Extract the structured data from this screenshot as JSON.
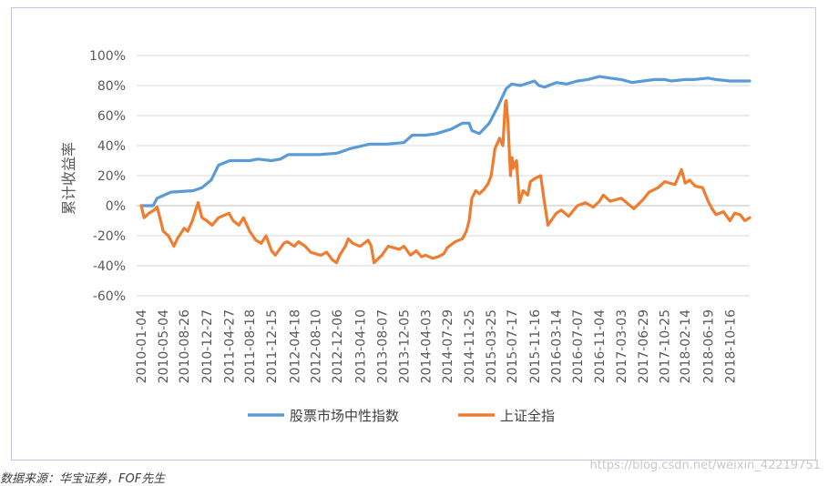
{
  "chart_data": {
    "type": "line",
    "ylabel": "累计收益率",
    "xlabel": "",
    "ylim": [
      -60,
      100
    ],
    "yticks": [
      "100%",
      "80%",
      "60%",
      "40%",
      "20%",
      "0%",
      "-20%",
      "-40%",
      "-60%"
    ],
    "ytick_values": [
      100,
      80,
      60,
      40,
      20,
      0,
      -20,
      -40,
      -60
    ],
    "grid": "horizontal",
    "legend_position": "bottom",
    "x_tick_labels": [
      "2010-01-04",
      "2010-05-04",
      "2010-08-26",
      "2010-12-27",
      "2011-04-27",
      "2011-08-18",
      "2011-12-15",
      "2012-04-18",
      "2012-08-10",
      "2012-12-06",
      "2013-04-10",
      "2013-08-07",
      "2013-12-05",
      "2014-04-03",
      "2014-07-29",
      "2014-11-25",
      "2015-03-25",
      "2015-07-17",
      "2015-11-16",
      "2016-03-14",
      "2016-07-07",
      "2016-11-04",
      "2017-03-03",
      "2017-06-29",
      "2017-10-25",
      "2018-02-14",
      "2018-06-19",
      "2018-10-16"
    ],
    "x_range": [
      "2010-01-04",
      "2019-01-31"
    ],
    "series": [
      {
        "name": "股票市场中性指数",
        "color": "#5b9bd5",
        "points": [
          [
            "2010-01-04",
            0
          ],
          [
            "2010-03-10",
            0
          ],
          [
            "2010-04-01",
            5
          ],
          [
            "2010-06-15",
            9
          ],
          [
            "2010-10-15",
            10
          ],
          [
            "2010-12-01",
            12
          ],
          [
            "2011-01-20",
            17
          ],
          [
            "2011-03-01",
            27
          ],
          [
            "2011-05-01",
            30
          ],
          [
            "2011-08-18",
            30
          ],
          [
            "2011-10-01",
            31
          ],
          [
            "2011-12-15",
            30
          ],
          [
            "2012-02-01",
            31
          ],
          [
            "2012-03-15",
            34
          ],
          [
            "2012-06-01",
            34
          ],
          [
            "2012-09-01",
            34
          ],
          [
            "2012-12-06",
            35
          ],
          [
            "2013-02-15",
            38
          ],
          [
            "2013-06-01",
            41
          ],
          [
            "2013-09-01",
            41
          ],
          [
            "2013-12-05",
            42
          ],
          [
            "2014-01-20",
            47
          ],
          [
            "2014-04-03",
            47
          ],
          [
            "2014-06-01",
            48
          ],
          [
            "2014-08-20",
            51
          ],
          [
            "2014-10-20",
            55
          ],
          [
            "2014-11-25",
            55
          ],
          [
            "2014-12-10",
            50
          ],
          [
            "2015-01-20",
            48
          ],
          [
            "2015-03-15",
            55
          ],
          [
            "2015-05-01",
            66
          ],
          [
            "2015-06-15",
            78
          ],
          [
            "2015-07-15",
            81
          ],
          [
            "2015-09-01",
            80
          ],
          [
            "2015-11-16",
            83
          ],
          [
            "2015-12-10",
            80
          ],
          [
            "2016-01-10",
            79
          ],
          [
            "2016-03-14",
            82
          ],
          [
            "2016-05-10",
            81
          ],
          [
            "2016-07-07",
            83
          ],
          [
            "2016-09-01",
            84
          ],
          [
            "2016-11-04",
            86
          ],
          [
            "2017-01-01",
            85
          ],
          [
            "2017-03-03",
            84
          ],
          [
            "2017-05-01",
            82
          ],
          [
            "2017-06-29",
            83
          ],
          [
            "2017-09-01",
            84
          ],
          [
            "2017-10-25",
            84
          ],
          [
            "2017-12-01",
            83
          ],
          [
            "2018-02-14",
            84
          ],
          [
            "2018-04-01",
            84
          ],
          [
            "2018-06-19",
            85
          ],
          [
            "2018-08-01",
            84
          ],
          [
            "2018-10-16",
            83
          ],
          [
            "2019-01-31",
            83
          ]
        ]
      },
      {
        "name": "上证全指",
        "color": "#ed7d31",
        "points": [
          [
            "2010-01-04",
            0
          ],
          [
            "2010-01-20",
            -8
          ],
          [
            "2010-02-15",
            -5
          ],
          [
            "2010-03-15",
            -3
          ],
          [
            "2010-04-01",
            -1
          ],
          [
            "2010-04-20",
            -10
          ],
          [
            "2010-05-04",
            -17
          ],
          [
            "2010-06-01",
            -20
          ],
          [
            "2010-07-01",
            -27
          ],
          [
            "2010-07-20",
            -22
          ],
          [
            "2010-08-26",
            -15
          ],
          [
            "2010-09-15",
            -17
          ],
          [
            "2010-10-10",
            -10
          ],
          [
            "2010-11-10",
            2
          ],
          [
            "2010-12-01",
            -8
          ],
          [
            "2010-12-27",
            -10
          ],
          [
            "2011-01-25",
            -13
          ],
          [
            "2011-03-01",
            -8
          ],
          [
            "2011-04-27",
            -5
          ],
          [
            "2011-05-20",
            -10
          ],
          [
            "2011-06-20",
            -13
          ],
          [
            "2011-07-15",
            -8
          ],
          [
            "2011-08-18",
            -17
          ],
          [
            "2011-09-20",
            -23
          ],
          [
            "2011-10-20",
            -25
          ],
          [
            "2011-11-15",
            -20
          ],
          [
            "2011-12-15",
            -30
          ],
          [
            "2012-01-05",
            -33
          ],
          [
            "2012-02-20",
            -25
          ],
          [
            "2012-03-10",
            -24
          ],
          [
            "2012-04-18",
            -27
          ],
          [
            "2012-05-10",
            -24
          ],
          [
            "2012-06-15",
            -27
          ],
          [
            "2012-07-15",
            -31
          ],
          [
            "2012-08-10",
            -32
          ],
          [
            "2012-09-10",
            -33
          ],
          [
            "2012-10-10",
            -31
          ],
          [
            "2012-11-10",
            -36
          ],
          [
            "2012-12-03",
            -38
          ],
          [
            "2012-12-20",
            -33
          ],
          [
            "2013-01-20",
            -27
          ],
          [
            "2013-02-05",
            -22
          ],
          [
            "2013-03-01",
            -25
          ],
          [
            "2013-04-10",
            -27
          ],
          [
            "2013-05-25",
            -23
          ],
          [
            "2013-06-10",
            -27
          ],
          [
            "2013-06-25",
            -38
          ],
          [
            "2013-07-20",
            -35
          ],
          [
            "2013-08-07",
            -33
          ],
          [
            "2013-09-10",
            -27
          ],
          [
            "2013-10-10",
            -28
          ],
          [
            "2013-11-10",
            -29
          ],
          [
            "2013-12-05",
            -27
          ],
          [
            "2014-01-10",
            -33
          ],
          [
            "2014-02-10",
            -30
          ],
          [
            "2014-03-10",
            -34
          ],
          [
            "2014-04-03",
            -33
          ],
          [
            "2014-05-10",
            -35
          ],
          [
            "2014-06-10",
            -34
          ],
          [
            "2014-07-10",
            -32
          ],
          [
            "2014-07-29",
            -28
          ],
          [
            "2014-09-10",
            -24
          ],
          [
            "2014-10-20",
            -22
          ],
          [
            "2014-11-10",
            -17
          ],
          [
            "2014-11-25",
            -10
          ],
          [
            "2014-12-10",
            5
          ],
          [
            "2014-12-31",
            10
          ],
          [
            "2015-01-20",
            8
          ],
          [
            "2015-02-15",
            11
          ],
          [
            "2015-03-10",
            15
          ],
          [
            "2015-03-25",
            20
          ],
          [
            "2015-04-15",
            38
          ],
          [
            "2015-05-10",
            45
          ],
          [
            "2015-05-28",
            40
          ],
          [
            "2015-06-10",
            68
          ],
          [
            "2015-06-15",
            70
          ],
          [
            "2015-06-25",
            55
          ],
          [
            "2015-07-08",
            20
          ],
          [
            "2015-07-17",
            32
          ],
          [
            "2015-07-24",
            25
          ],
          [
            "2015-08-10",
            30
          ],
          [
            "2015-08-26",
            2
          ],
          [
            "2015-09-15",
            10
          ],
          [
            "2015-10-10",
            7
          ],
          [
            "2015-10-25",
            16
          ],
          [
            "2015-11-16",
            18
          ],
          [
            "2015-12-20",
            20
          ],
          [
            "2016-01-05",
            6
          ],
          [
            "2016-01-28",
            -13
          ],
          [
            "2016-03-14",
            -5
          ],
          [
            "2016-04-10",
            -3
          ],
          [
            "2016-05-20",
            -7
          ],
          [
            "2016-07-07",
            0
          ],
          [
            "2016-08-20",
            2
          ],
          [
            "2016-10-01",
            -1
          ],
          [
            "2016-11-04",
            3
          ],
          [
            "2016-11-25",
            7
          ],
          [
            "2017-01-01",
            3
          ],
          [
            "2017-03-03",
            5
          ],
          [
            "2017-05-10",
            -2
          ],
          [
            "2017-06-29",
            4
          ],
          [
            "2017-08-01",
            9
          ],
          [
            "2017-09-20",
            12
          ],
          [
            "2017-10-25",
            16
          ],
          [
            "2017-12-20",
            14
          ],
          [
            "2018-01-25",
            24
          ],
          [
            "2018-02-14",
            15
          ],
          [
            "2018-03-10",
            17
          ],
          [
            "2018-04-10",
            13
          ],
          [
            "2018-05-20",
            12
          ],
          [
            "2018-06-19",
            3
          ],
          [
            "2018-07-10",
            -2
          ],
          [
            "2018-08-01",
            -6
          ],
          [
            "2018-09-10",
            -4
          ],
          [
            "2018-10-16",
            -10
          ],
          [
            "2018-11-10",
            -5
          ],
          [
            "2018-12-10",
            -6
          ],
          [
            "2019-01-04",
            -10
          ],
          [
            "2019-01-31",
            -8
          ]
        ]
      }
    ]
  },
  "footer": {
    "source": "数据来源：华宝证券，FOF先生",
    "watermark": "https://blog.csdn.net/weixin_42219751"
  }
}
